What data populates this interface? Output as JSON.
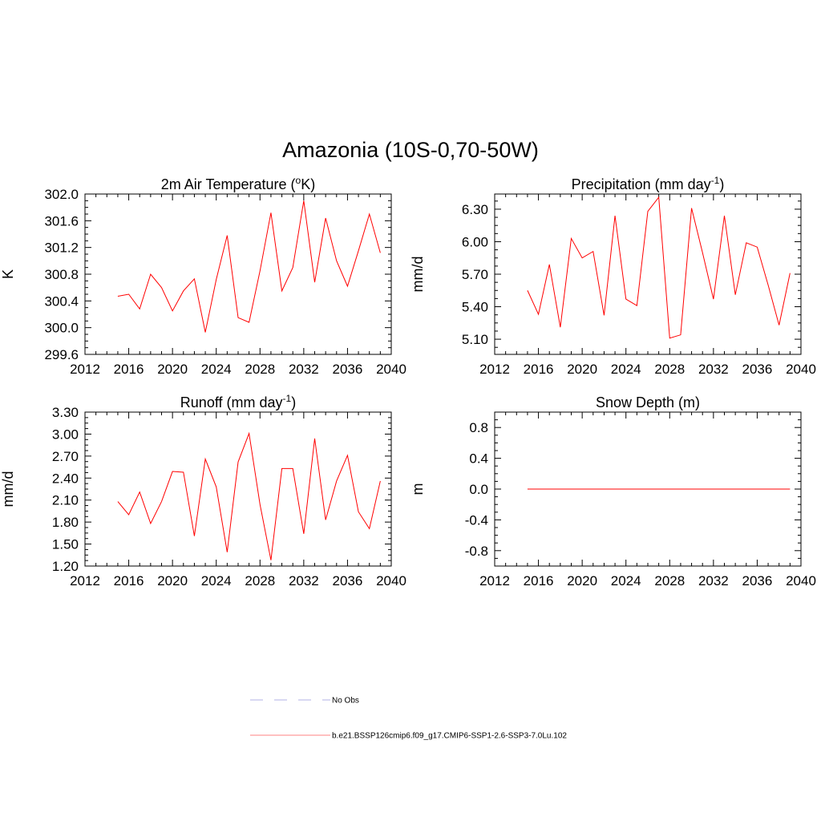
{
  "figure": {
    "title": "Amazonia (10S-0,70-50W)"
  },
  "legend": {
    "items": [
      {
        "label": "No Obs",
        "color": "#b0b0e6",
        "dash": true
      },
      {
        "label": "b.e21.BSSP126cmip6.f09_g17.CMIP6-SSP1-2.6-SSP3-7.0Lu.102",
        "color": "#ff8080",
        "dash": false
      }
    ]
  },
  "chart_data": [
    {
      "type": "line",
      "title": "2m Air Temperature (",
      "title_sup": "o",
      "title_after": "K)",
      "title_sup2": "",
      "title_end": "",
      "ylabel": "K",
      "xlim": [
        2012,
        2040
      ],
      "ylim": [
        299.6,
        302.0
      ],
      "xticks": [
        2012,
        2016,
        2020,
        2024,
        2028,
        2032,
        2036,
        2040
      ],
      "yticks": [
        "299.6",
        "300.0",
        "300.4",
        "300.8",
        "301.2",
        "301.6",
        "302.0"
      ],
      "ytick_values": [
        299.6,
        300.0,
        300.4,
        300.8,
        301.2,
        301.6,
        302.0
      ],
      "color": "#ff0000",
      "x": [
        2015,
        2016,
        2017,
        2018,
        2019,
        2020,
        2021,
        2022,
        2023,
        2024,
        2025,
        2026,
        2027,
        2028,
        2029,
        2030,
        2031,
        2032,
        2033,
        2034,
        2035,
        2036,
        2037,
        2038,
        2039
      ],
      "y": [
        300.47,
        300.5,
        300.28,
        300.8,
        300.6,
        300.25,
        300.55,
        300.73,
        299.93,
        300.72,
        301.38,
        300.15,
        300.08,
        300.85,
        301.72,
        300.55,
        300.9,
        301.9,
        300.68,
        301.64,
        301.0,
        300.62,
        301.15,
        301.7,
        301.12
      ]
    },
    {
      "type": "line",
      "title": "Precipitation (mm day",
      "title_sup": "-1",
      "title_after": ")",
      "title_sup2": "",
      "title_end": "",
      "ylabel": "mm/d",
      "xlim": [
        2012,
        2040
      ],
      "ylim": [
        4.96,
        6.44
      ],
      "xticks": [
        2012,
        2016,
        2020,
        2024,
        2028,
        2032,
        2036,
        2040
      ],
      "yticks": [
        "5.10",
        "5.40",
        "5.70",
        "6.00",
        "6.30"
      ],
      "ytick_values": [
        5.1,
        5.4,
        5.7,
        6.0,
        6.3
      ],
      "color": "#ff0000",
      "x": [
        2015,
        2016,
        2017,
        2018,
        2019,
        2020,
        2021,
        2022,
        2023,
        2024,
        2025,
        2026,
        2027,
        2028,
        2029,
        2030,
        2031,
        2032,
        2033,
        2034,
        2035,
        2036,
        2037,
        2038,
        2039
      ],
      "y": [
        5.55,
        5.33,
        5.79,
        5.21,
        6.03,
        5.85,
        5.91,
        5.32,
        6.24,
        5.47,
        5.41,
        6.28,
        6.41,
        5.11,
        5.14,
        6.31,
        5.9,
        5.47,
        6.24,
        5.51,
        5.99,
        5.95,
        5.6,
        5.23,
        5.71
      ]
    },
    {
      "type": "line",
      "title": "Runoff (mm day",
      "title_sup": "-1",
      "title_after": ")",
      "title_sup2": "",
      "title_end": "",
      "ylabel": "mm/d",
      "xlim": [
        2012,
        2040
      ],
      "ylim": [
        1.2,
        3.3
      ],
      "xticks": [
        2012,
        2016,
        2020,
        2024,
        2028,
        2032,
        2036,
        2040
      ],
      "yticks": [
        "1.20",
        "1.50",
        "1.80",
        "2.10",
        "2.40",
        "2.70",
        "3.00",
        "3.30"
      ],
      "ytick_values": [
        1.2,
        1.5,
        1.8,
        2.1,
        2.4,
        2.7,
        3.0,
        3.3
      ],
      "color": "#ff0000",
      "x": [
        2015,
        2016,
        2017,
        2018,
        2019,
        2020,
        2021,
        2022,
        2023,
        2024,
        2025,
        2026,
        2027,
        2028,
        2029,
        2030,
        2031,
        2032,
        2033,
        2034,
        2035,
        2036,
        2037,
        2038,
        2039
      ],
      "y": [
        2.08,
        1.9,
        2.21,
        1.78,
        2.08,
        2.49,
        2.48,
        1.61,
        2.66,
        2.28,
        1.39,
        2.62,
        3.01,
        2.04,
        1.28,
        2.53,
        2.53,
        1.64,
        2.94,
        1.83,
        2.36,
        2.71,
        1.94,
        1.71,
        2.36
      ]
    },
    {
      "type": "line",
      "title": "Snow Depth (m)",
      "title_sup": "",
      "title_after": "",
      "title_sup2": "",
      "title_end": "",
      "ylabel": "m",
      "xlim": [
        2012,
        2040
      ],
      "ylim": [
        -1.0,
        1.0
      ],
      "xticks": [
        2012,
        2016,
        2020,
        2024,
        2028,
        2032,
        2036,
        2040
      ],
      "yticks": [
        "-0.8",
        "-0.4",
        "0.0",
        "0.4",
        "0.8"
      ],
      "ytick_values": [
        -0.8,
        -0.4,
        0.0,
        0.4,
        0.8
      ],
      "color": "#ff0000",
      "x": [
        2015,
        2039
      ],
      "y": [
        0.0,
        0.0
      ]
    }
  ]
}
